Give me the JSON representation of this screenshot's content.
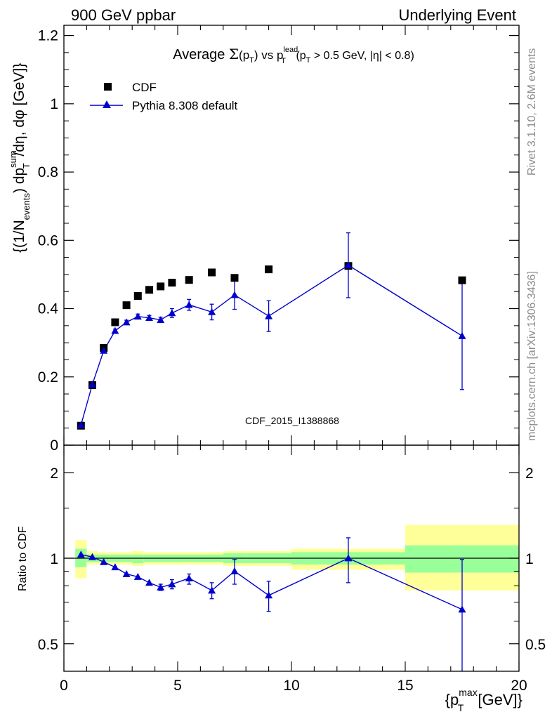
{
  "header": {
    "left": "900 GeV ppbar",
    "right": "Underlying Event"
  },
  "side_labels": {
    "rivet": "Rivet 3.1.10,  2.6M events",
    "mcplots": "mcplots.cern.ch [arXiv:1306.3436]"
  },
  "analysis_id": "CDF_2015_I1388868",
  "colors": {
    "data": "#000000",
    "mc": "#0000cc",
    "band_outer": "#ffff99",
    "band_inner": "#99ff99"
  },
  "chart_data": [
    {
      "type": "scatter",
      "panel": "main",
      "title_parts": {
        "a": "Average ",
        "sigma": "Σ",
        "b": "(p",
        "b_sub": "T",
        "c": ") vs p",
        "c_sup": "lead",
        "c_sub": "T",
        "d": " (p",
        "d_sub": "T",
        "e": " > 0.5 GeV, |η| < 0.8)"
      },
      "ylabel_parts": {
        "a": "{(1/N",
        "a_sub": "events",
        "b": ") dp",
        "b_sup": "sum",
        "b_sub": "T",
        "c": " /dη, dφ [GeV]}"
      },
      "xlim": [
        0,
        20
      ],
      "ylim": [
        0,
        1.23
      ],
      "y_ticks": [
        0,
        0.2,
        0.4,
        0.6,
        0.8,
        1,
        1.2
      ],
      "y_tick_labels": [
        "0",
        "0.2",
        "0.4",
        "0.6",
        "0.8",
        "1",
        "1.2"
      ],
      "legend_position": "top-left",
      "series": [
        {
          "name": "CDF",
          "marker": "square",
          "x": [
            0.75,
            1.25,
            1.75,
            2.25,
            2.75,
            3.25,
            3.75,
            4.25,
            4.75,
            5.5,
            6.5,
            7.5,
            9.0,
            12.5,
            17.5
          ],
          "y": [
            0.057,
            0.176,
            0.285,
            0.36,
            0.41,
            0.437,
            0.455,
            0.465,
            0.476,
            0.484,
            0.506,
            0.49,
            0.515,
            0.525,
            0.483
          ]
        },
        {
          "name": "Pythia 8.308 default",
          "marker": "triangle",
          "x": [
            0.75,
            1.25,
            1.75,
            2.25,
            2.75,
            3.25,
            3.75,
            4.25,
            4.75,
            5.5,
            6.5,
            7.5,
            9.0,
            12.5,
            17.5
          ],
          "y": [
            0.059,
            0.178,
            0.277,
            0.335,
            0.36,
            0.377,
            0.373,
            0.367,
            0.387,
            0.411,
            0.39,
            0.44,
            0.378,
            0.527,
            0.32
          ],
          "err": [
            0.002,
            0.003,
            0.005,
            0.005,
            0.006,
            0.007,
            0.007,
            0.008,
            0.013,
            0.016,
            0.023,
            0.042,
            0.045,
            0.095,
            0.157
          ]
        }
      ]
    },
    {
      "type": "scatter",
      "panel": "ratio",
      "ylabel": "Ratio to CDF",
      "xlabel_parts": {
        "a": "{p",
        "a_sup": "max",
        "a_sub": "T",
        "b": " [GeV]}"
      },
      "xlim": [
        0,
        20
      ],
      "x_ticks": [
        0,
        5,
        10,
        15,
        20
      ],
      "x_tick_labels": [
        "0",
        "5",
        "10",
        "15",
        "20"
      ],
      "ylim_log": [
        0.4,
        2.5
      ],
      "y_ticks": [
        0.5,
        1,
        2
      ],
      "y_tick_labels": [
        "0.5",
        "1",
        "2"
      ],
      "data_bands": [
        {
          "x": [
            0.5,
            1.0
          ],
          "inner": [
            0.93,
            1.08
          ],
          "outer": [
            0.85,
            1.16
          ]
        },
        {
          "x": [
            1.0,
            1.5
          ],
          "inner": [
            0.97,
            1.03
          ],
          "outer": [
            0.95,
            1.06
          ]
        },
        {
          "x": [
            1.5,
            2.0
          ],
          "inner": [
            0.97,
            1.03
          ],
          "outer": [
            0.95,
            1.05
          ]
        },
        {
          "x": [
            2.0,
            3.0
          ],
          "inner": [
            0.97,
            1.03
          ],
          "outer": [
            0.95,
            1.05
          ]
        },
        {
          "x": [
            3.0,
            3.5
          ],
          "inner": [
            0.96,
            1.03
          ],
          "outer": [
            0.94,
            1.06
          ]
        },
        {
          "x": [
            3.5,
            5.0
          ],
          "inner": [
            0.97,
            1.03
          ],
          "outer": [
            0.95,
            1.05
          ]
        },
        {
          "x": [
            5.0,
            7.0
          ],
          "inner": [
            0.97,
            1.03
          ],
          "outer": [
            0.95,
            1.05
          ]
        },
        {
          "x": [
            7.0,
            8.0
          ],
          "inner": [
            0.96,
            1.04
          ],
          "outer": [
            0.94,
            1.06
          ]
        },
        {
          "x": [
            8.0,
            10.0
          ],
          "inner": [
            0.96,
            1.04
          ],
          "outer": [
            0.94,
            1.06
          ]
        },
        {
          "x": [
            10.0,
            15.0
          ],
          "inner": [
            0.95,
            1.05
          ],
          "outer": [
            0.91,
            1.08
          ]
        },
        {
          "x": [
            15.0,
            20.0
          ],
          "inner": [
            0.89,
            1.11
          ],
          "outer": [
            0.77,
            1.31
          ]
        }
      ],
      "series": [
        {
          "name": "Pythia 8.308 default",
          "marker": "triangle",
          "x": [
            0.75,
            1.25,
            1.75,
            2.25,
            2.75,
            3.25,
            3.75,
            4.25,
            4.75,
            5.5,
            6.5,
            7.5,
            9.0,
            12.5,
            17.5
          ],
          "y": [
            1.03,
            1.01,
            0.97,
            0.93,
            0.88,
            0.86,
            0.82,
            0.79,
            0.81,
            0.85,
            0.77,
            0.9,
            0.74,
            1.0,
            0.66
          ],
          "lo": [
            1.03,
            1.01,
            0.97,
            0.93,
            0.88,
            0.86,
            0.82,
            0.77,
            0.78,
            0.81,
            0.72,
            0.81,
            0.65,
            0.82,
            0.33
          ],
          "hi": [
            1.03,
            1.01,
            0.97,
            0.93,
            0.88,
            0.86,
            0.82,
            0.81,
            0.84,
            0.88,
            0.82,
            0.99,
            0.83,
            1.18,
            0.99
          ]
        }
      ]
    }
  ]
}
